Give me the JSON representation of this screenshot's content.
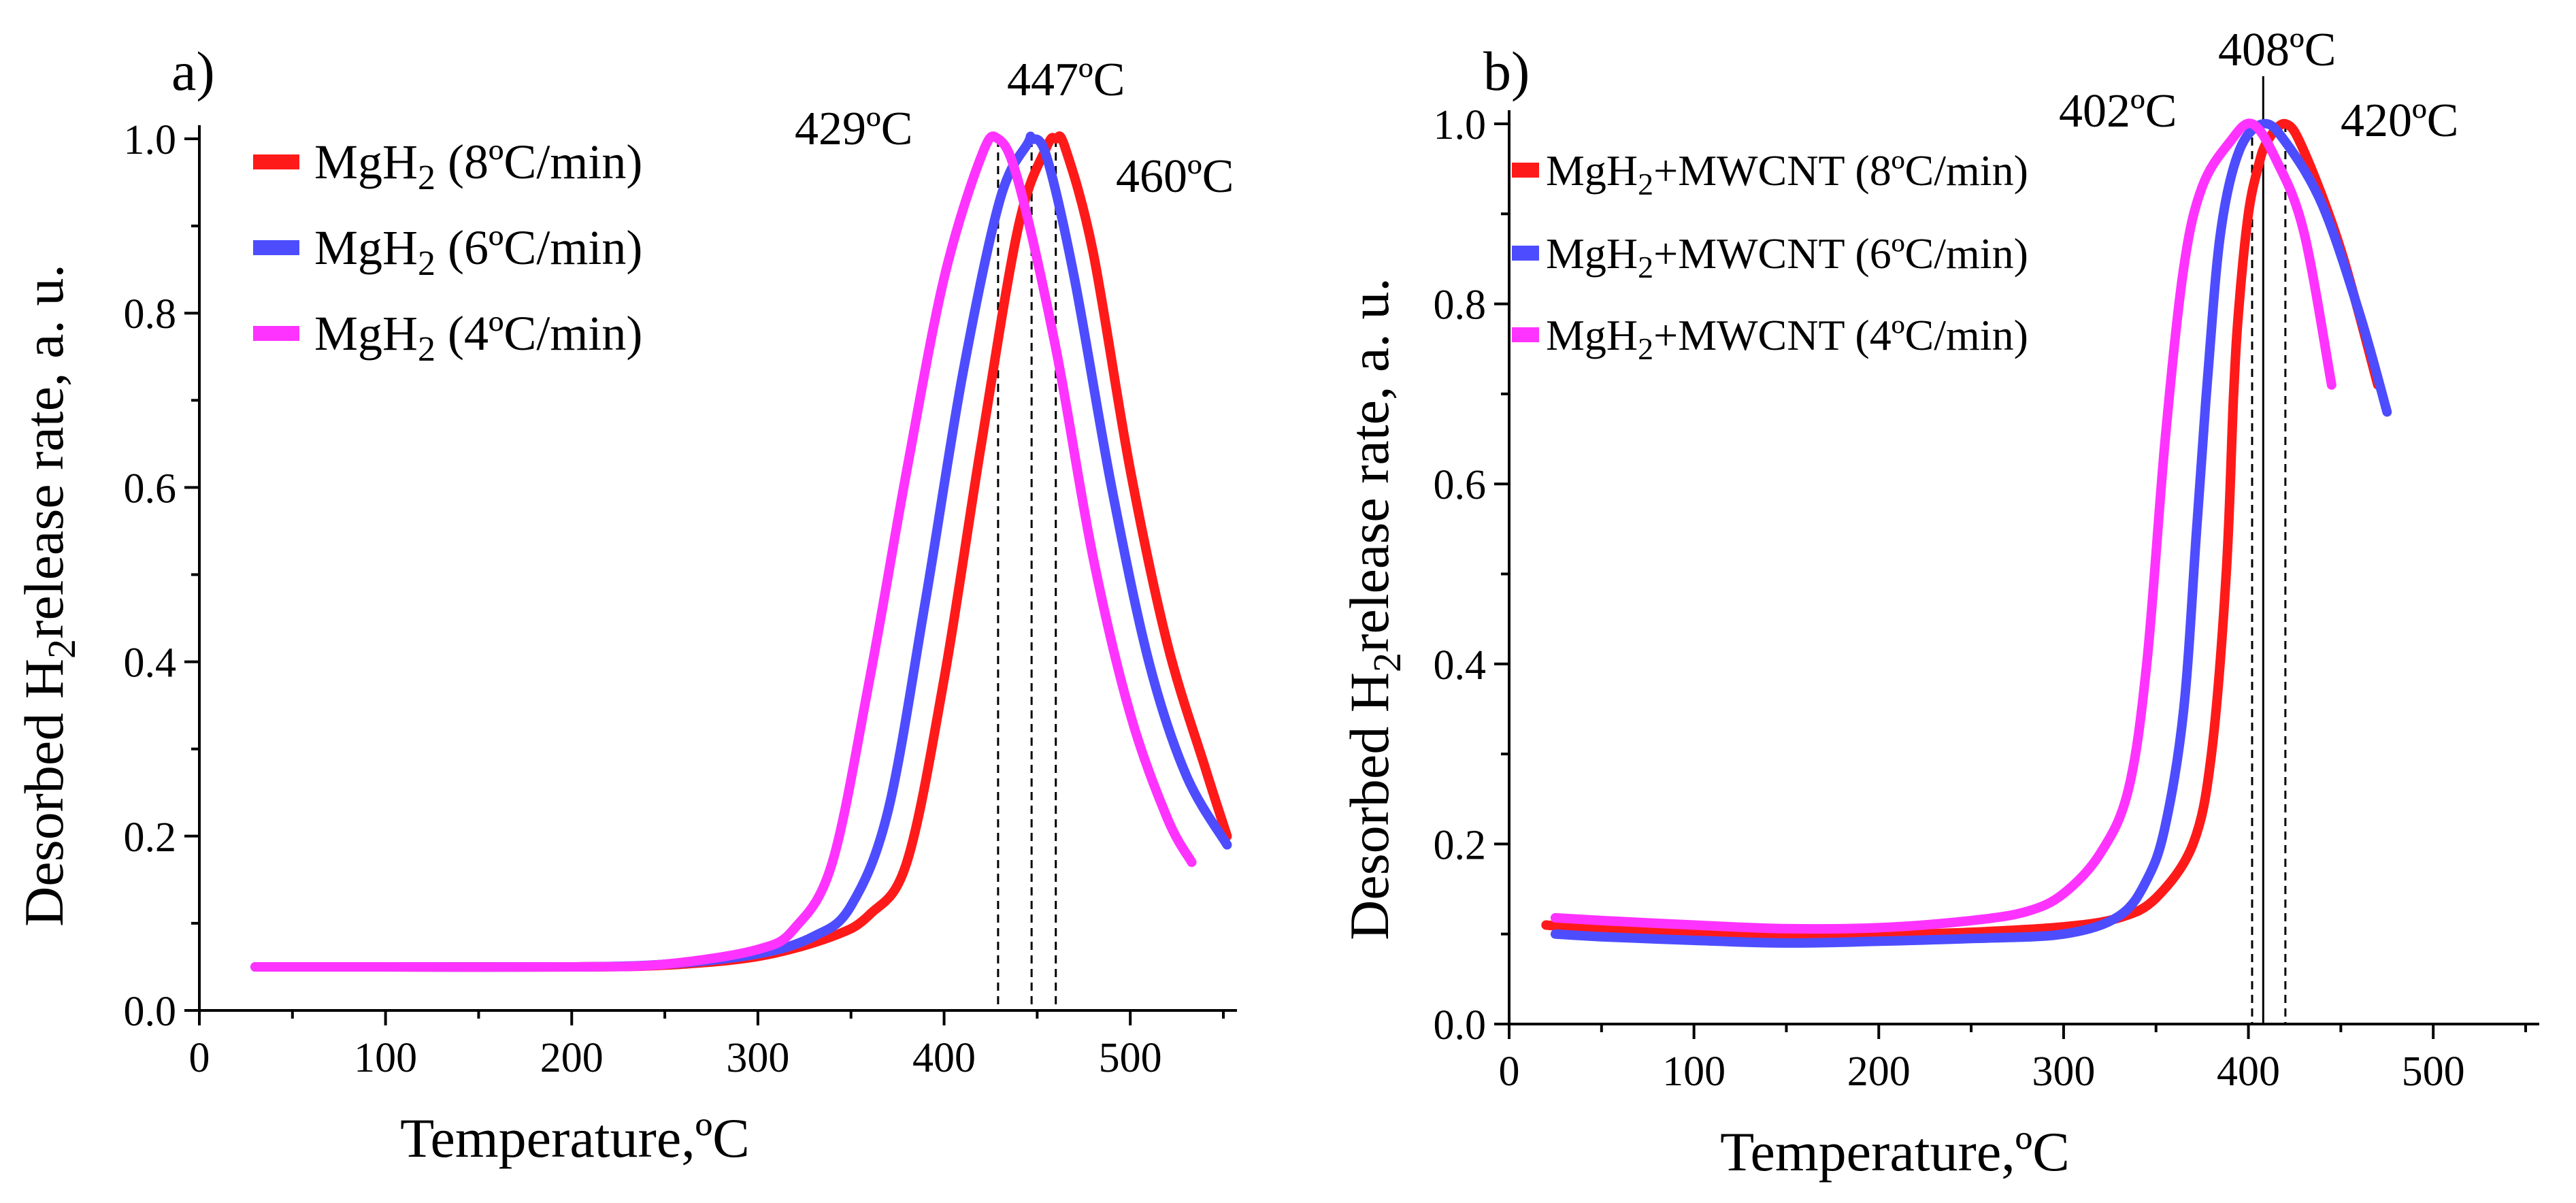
{
  "colors": {
    "rate_8": "#ff1a1a",
    "rate_6": "#4d4dff",
    "rate_4": "#ff33ff",
    "peak_8_text": "#ff2020",
    "peak_6_text": "#1f1fff",
    "peak_4_text": "#ff22ff"
  },
  "chart_data": [
    {
      "type": "line",
      "panel_label": "a)",
      "xlabel": "Temperature,ºC",
      "ylabel_parts": [
        "Desorbed H",
        "2",
        "release rate, a. u."
      ],
      "xlim": [
        0,
        550
      ],
      "ylim": [
        0,
        1.0
      ],
      "x_ticks": [
        "0",
        "100",
        "200",
        "300",
        "400",
        "500"
      ],
      "y_ticks": [
        "0.0",
        "0.2",
        "0.4",
        "0.6",
        "0.8",
        "1.0"
      ],
      "legend_position": "top-left",
      "legend": [
        {
          "formula": "MgH",
          "sub": "2",
          "rate": " (8ºC/min)"
        },
        {
          "formula": "MgH",
          "sub": "2",
          "rate": " (6ºC/min)"
        },
        {
          "formula": "MgH",
          "sub": "2",
          "rate": " (4ºC/min)"
        }
      ],
      "peaks": [
        {
          "label": "460ºC",
          "x": 460
        },
        {
          "label": "447ºC",
          "x": 447
        },
        {
          "label": "429ºC",
          "x": 429
        }
      ],
      "series": [
        {
          "x": [
            30,
            100,
            200,
            250,
            300,
            340,
            360,
            380,
            400,
            420,
            440,
            455,
            460,
            465,
            480,
            500,
            520,
            540,
            552
          ],
          "y": [
            0.05,
            0.05,
            0.05,
            0.052,
            0.062,
            0.085,
            0.11,
            0.17,
            0.38,
            0.65,
            0.9,
            0.99,
            1.0,
            0.99,
            0.87,
            0.62,
            0.42,
            0.28,
            0.2
          ]
        },
        {
          "x": [
            30,
            100,
            200,
            250,
            300,
            330,
            350,
            370,
            390,
            410,
            430,
            445,
            447,
            455,
            470,
            490,
            510,
            530,
            552
          ],
          "y": [
            0.05,
            0.05,
            0.05,
            0.053,
            0.065,
            0.085,
            0.12,
            0.23,
            0.47,
            0.73,
            0.93,
            0.995,
            1.0,
            0.98,
            0.84,
            0.6,
            0.4,
            0.27,
            0.19
          ]
        },
        {
          "x": [
            30,
            100,
            200,
            250,
            300,
            320,
            340,
            360,
            380,
            400,
            420,
            429,
            440,
            460,
            480,
            500,
            520,
            533
          ],
          "y": [
            0.05,
            0.05,
            0.05,
            0.053,
            0.07,
            0.095,
            0.17,
            0.38,
            0.62,
            0.84,
            0.98,
            1.0,
            0.95,
            0.76,
            0.52,
            0.34,
            0.22,
            0.17
          ]
        }
      ]
    },
    {
      "type": "line",
      "panel_label": "b)",
      "xlabel": "Temperature,ºC",
      "ylabel_parts": [
        "Desorbed H",
        "2",
        "release rate, a. u."
      ],
      "xlim": [
        0,
        550
      ],
      "ylim": [
        0,
        1.0
      ],
      "x_ticks": [
        "0",
        "100",
        "200",
        "300",
        "400",
        "500"
      ],
      "y_ticks": [
        "0.0",
        "0.2",
        "0.4",
        "0.6",
        "0.8",
        "1.0"
      ],
      "legend_position": "top-left",
      "legend": [
        {
          "formula": "MgH",
          "sub": "2",
          "rate": "+MWCNT (8ºC/min)"
        },
        {
          "formula": "MgH",
          "sub": "2",
          "rate": "+MWCNT (6ºC/min)"
        },
        {
          "formula": "MgH",
          "sub": "2",
          "rate": "+MWCNT (4ºC/min)"
        }
      ],
      "peaks": [
        {
          "label": "420ºC",
          "x": 420
        },
        {
          "label": "408ºC",
          "x": 408
        },
        {
          "label": "402ºC",
          "x": 402
        }
      ],
      "series": [
        {
          "x": [
            20,
            50,
            100,
            150,
            200,
            250,
            300,
            330,
            350,
            370,
            380,
            388,
            392,
            395,
            400,
            405,
            410,
            420,
            430,
            450,
            470
          ],
          "y": [
            0.11,
            0.105,
            0.1,
            0.098,
            0.099,
            0.102,
            0.108,
            0.118,
            0.14,
            0.2,
            0.3,
            0.5,
            0.7,
            0.8,
            0.9,
            0.95,
            0.98,
            1.0,
            0.97,
            0.86,
            0.71
          ]
        },
        {
          "x": [
            25,
            50,
            100,
            150,
            200,
            250,
            300,
            330,
            345,
            355,
            365,
            372,
            378,
            385,
            395,
            408,
            420,
            440,
            460,
            475
          ],
          "y": [
            0.1,
            0.097,
            0.093,
            0.09,
            0.092,
            0.095,
            0.1,
            0.12,
            0.16,
            0.22,
            0.35,
            0.55,
            0.72,
            0.88,
            0.97,
            1.0,
            0.98,
            0.91,
            0.79,
            0.68
          ]
        },
        {
          "x": [
            25,
            50,
            100,
            150,
            200,
            250,
            280,
            300,
            320,
            335,
            345,
            355,
            365,
            375,
            390,
            402,
            415,
            430,
            445
          ],
          "y": [
            0.118,
            0.115,
            0.11,
            0.106,
            0.107,
            0.115,
            0.125,
            0.145,
            0.19,
            0.26,
            0.4,
            0.65,
            0.84,
            0.93,
            0.98,
            1.0,
            0.96,
            0.88,
            0.71
          ]
        }
      ]
    }
  ]
}
